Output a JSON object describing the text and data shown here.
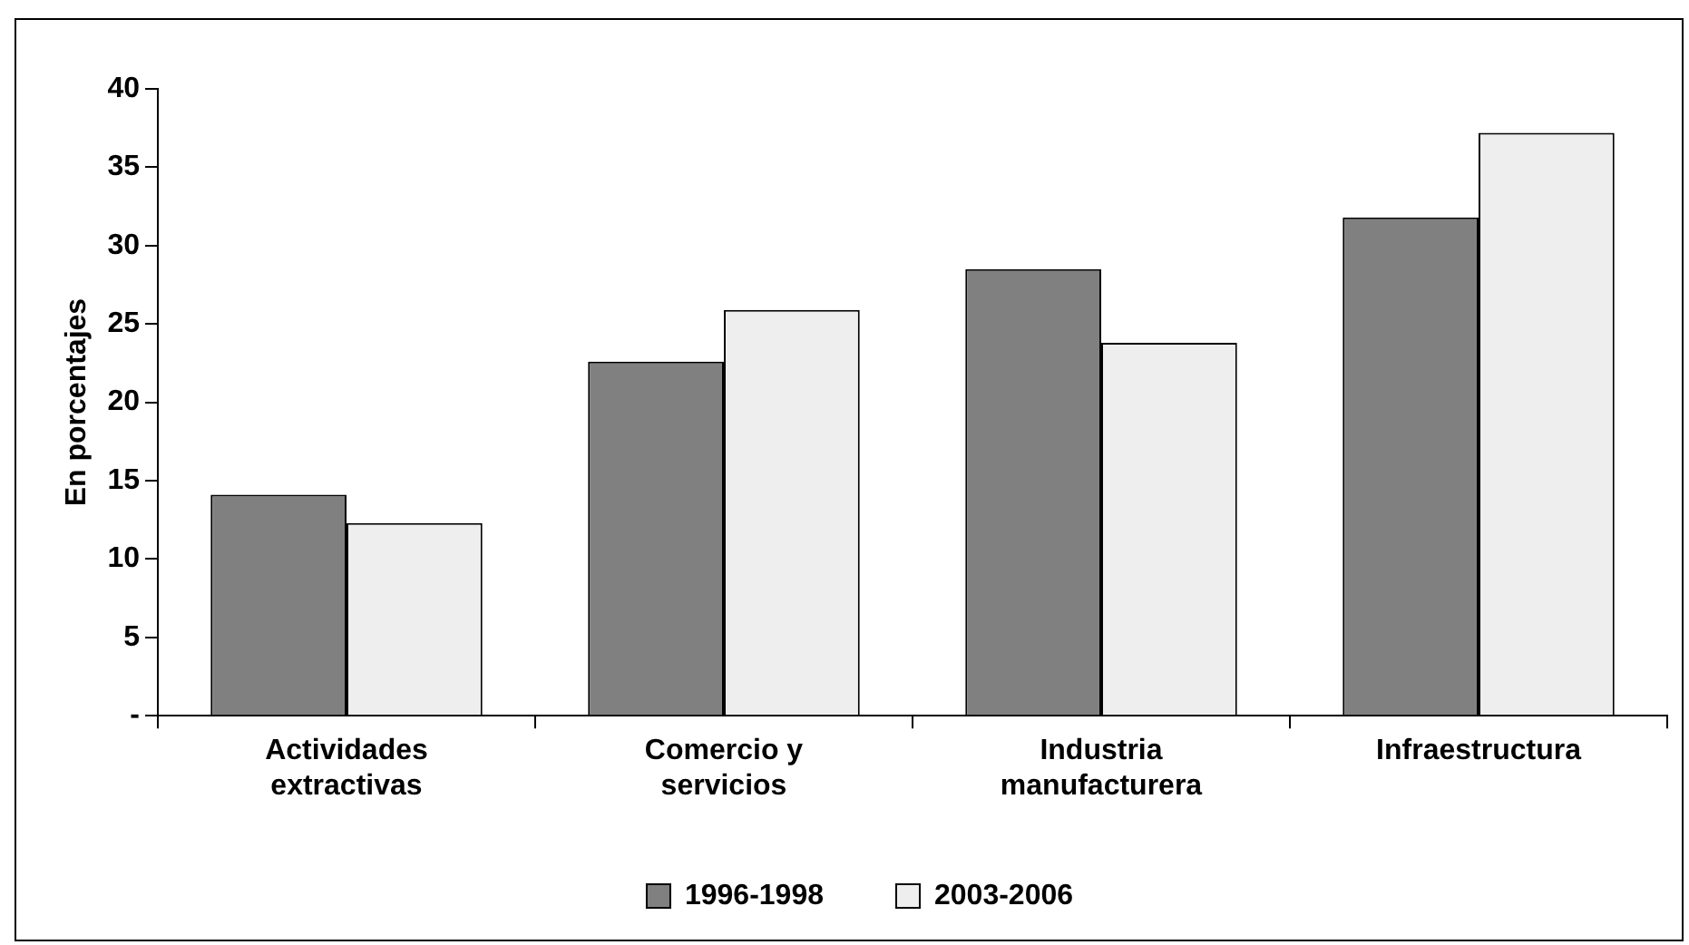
{
  "chart_data": {
    "type": "bar",
    "ylabel": "En porcentajes",
    "categories": [
      "Actividades extractivas",
      "Comercio y servicios",
      "Industria manufacturera",
      "Infraestructura"
    ],
    "series": [
      {
        "name": "1996-1998",
        "color": "#808080",
        "values": [
          14.1,
          22.6,
          28.5,
          31.8
        ]
      },
      {
        "name": "2003-2006",
        "color": "#eeeeee",
        "values": [
          12.3,
          25.9,
          23.8,
          37.2
        ]
      }
    ],
    "ylim": [
      0,
      40
    ],
    "yticks": [
      {
        "value": 0,
        "label": "-"
      },
      5,
      10,
      15,
      20,
      25,
      30,
      35,
      40
    ],
    "grid": false,
    "legend": "bottom"
  }
}
